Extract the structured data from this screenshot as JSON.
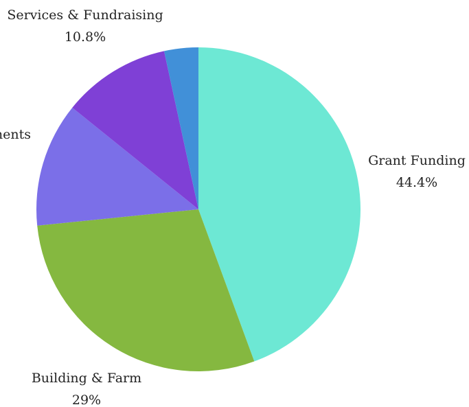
{
  "chart_data": {
    "type": "pie",
    "slices": [
      {
        "label": "Grant Funding",
        "value": 44.4,
        "value_label": "44.4%",
        "color": "#6de8d4"
      },
      {
        "label": "Building & Farm",
        "value": 29,
        "value_label": "29%",
        "color": "#85b840"
      },
      {
        "label": "Investments",
        "value": 12.4,
        "value_label": "",
        "color": "#7b6fe8"
      },
      {
        "label": "Services & Fundraising",
        "value": 10.8,
        "value_label": "10.8%",
        "color": "#7f40d6"
      },
      {
        "label": "",
        "value": 3.4,
        "value_label": "",
        "color": "#4190d8"
      }
    ],
    "start": "12 o'clock",
    "direction": "clockwise",
    "legend": "none"
  }
}
